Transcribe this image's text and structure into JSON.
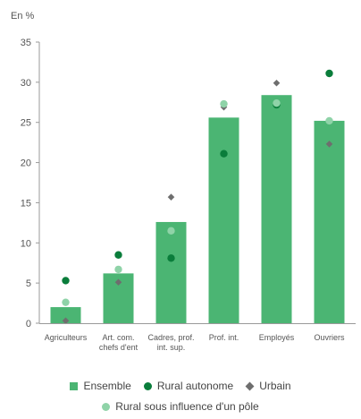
{
  "chart_data": {
    "type": "bar",
    "ylabel": "En %",
    "ylim": [
      0,
      35
    ],
    "yticks": [
      0,
      5,
      10,
      15,
      20,
      25,
      30,
      35
    ],
    "grid": false,
    "legend_position": "bottom",
    "categories": [
      [
        "Agriculteurs"
      ],
      [
        "Art. com.",
        "chefs d'ent"
      ],
      [
        "Cadres, prof.",
        "int. sup."
      ],
      [
        "Prof. int."
      ],
      [
        "Employés"
      ],
      [
        "Ouvriers"
      ]
    ],
    "series": [
      {
        "name": "Ensemble",
        "mark": "bar",
        "color": "#4bb573",
        "values": [
          2.0,
          6.2,
          12.6,
          25.6,
          28.4,
          25.2
        ]
      },
      {
        "name": "Rural autonome",
        "mark": "dot",
        "color": "#0a7d3b",
        "values": [
          5.3,
          8.5,
          8.1,
          21.1,
          27.2,
          31.1
        ]
      },
      {
        "name": "Urbain",
        "mark": "diamond",
        "color": "#6e6e6e",
        "values": [
          0.3,
          5.1,
          15.7,
          26.9,
          29.9,
          22.3
        ]
      },
      {
        "name": "Rural sous influence d'un pôle",
        "mark": "dot",
        "color": "#8fd3a8",
        "values": [
          2.6,
          6.7,
          11.5,
          27.3,
          27.4,
          25.2
        ]
      }
    ]
  }
}
